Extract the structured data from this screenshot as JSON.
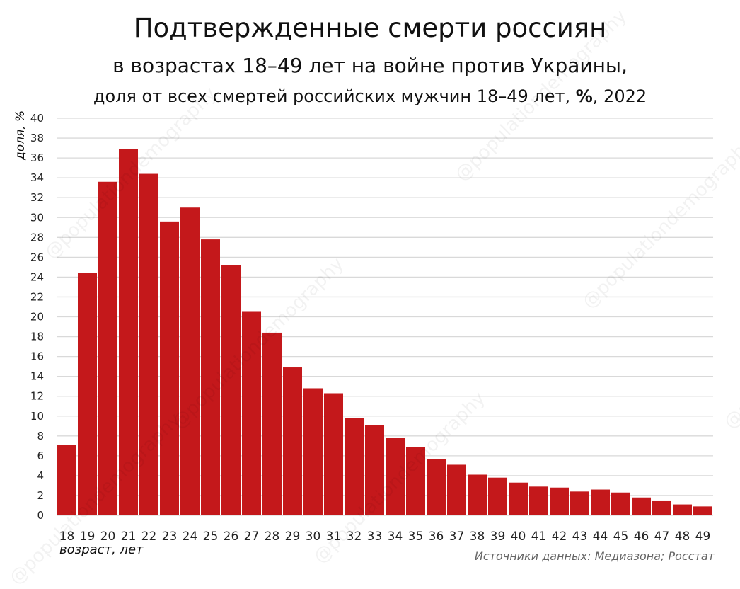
{
  "title": {
    "line1": "Подтвержденные смерти россиян",
    "line2": "в возрастах 18–49 лет на войне против Украины,",
    "line3_pre": "доля от всех смертей российских мужчин 18–49 лет, ",
    "line3_bold": "%",
    "line3_post": ", 2022"
  },
  "source": "Источники данных: Медиазона; Росстат",
  "watermark": "@populationdemography",
  "chart_data": {
    "type": "bar",
    "title": "Подтвержденные смерти россиян в возрастах 18–49 лет на войне против Украины, доля от всех смертей российских мужчин 18–49 лет, %, 2022",
    "xlabel": "возраст, лет",
    "ylabel": "доля, %",
    "ylim": [
      0,
      40
    ],
    "yticks": [
      0,
      2,
      4,
      6,
      8,
      10,
      12,
      14,
      16,
      18,
      20,
      22,
      24,
      26,
      28,
      30,
      32,
      34,
      36,
      38,
      40
    ],
    "grid": true,
    "bar_color": "#c4181b",
    "categories": [
      "18",
      "19",
      "20",
      "21",
      "22",
      "23",
      "24",
      "25",
      "26",
      "27",
      "28",
      "29",
      "30",
      "31",
      "32",
      "33",
      "34",
      "35",
      "36",
      "37",
      "38",
      "39",
      "40",
      "41",
      "42",
      "43",
      "44",
      "45",
      "46",
      "47",
      "48",
      "49"
    ],
    "values": [
      7.1,
      24.4,
      33.6,
      36.9,
      34.4,
      29.6,
      31.0,
      27.8,
      25.2,
      20.5,
      18.4,
      14.9,
      12.8,
      12.3,
      9.8,
      9.1,
      7.8,
      6.9,
      5.7,
      5.1,
      4.1,
      3.8,
      3.3,
      2.9,
      2.8,
      2.4,
      2.6,
      2.3,
      1.8,
      1.5,
      1.1,
      0.9
    ]
  }
}
